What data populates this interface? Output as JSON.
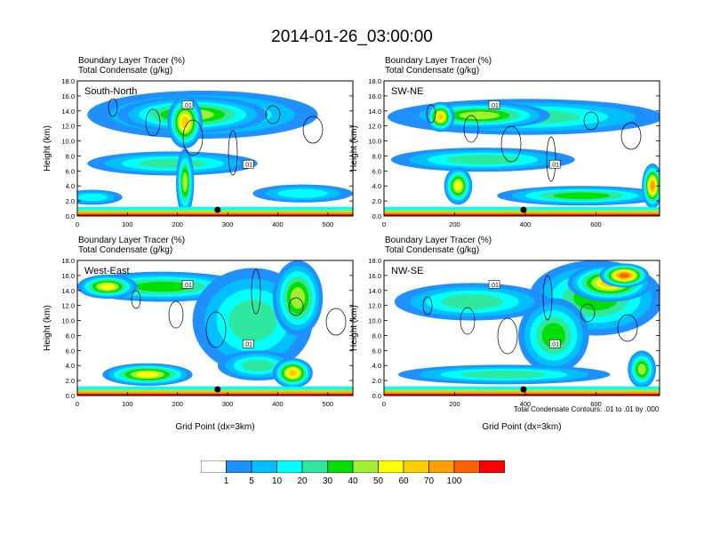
{
  "figure": {
    "title": "2014-01-26_03:00:00",
    "footnote": "Total Condensate Contours: .01 to .01 by .000"
  },
  "chart_data": [
    {
      "type": "heatmap",
      "panel": "South-North",
      "header_line1": "Boundary Layer Tracer    (%)",
      "header_line2": "Total Condensate    (g/kg)",
      "xlabel": "",
      "ylabel": "Height (km)",
      "xlim": [
        0,
        550
      ],
      "ylim": [
        0,
        18
      ],
      "x_ticks": [
        "0",
        "100",
        "200",
        "300",
        "400",
        "500"
      ],
      "y_ticks": [
        "0.0",
        "2.0",
        "4.0",
        "6.0",
        "8.0",
        "10.0",
        "12.0",
        "14.0",
        "16.0",
        "18.0"
      ],
      "contour_labels": [
        ".01"
      ]
    },
    {
      "type": "heatmap",
      "panel": "SW-NE",
      "header_line1": "Boundary Layer Tracer    (%)",
      "header_line2": "Total Condensate    (g/kg)",
      "xlabel": "",
      "ylabel": "Height (km)",
      "xlim": [
        0,
        780
      ],
      "ylim": [
        0,
        18
      ],
      "x_ticks": [
        "0",
        "200",
        "400",
        "600"
      ],
      "y_ticks": [
        "0.0",
        "2.0",
        "4.0",
        "6.0",
        "8.0",
        "10.0",
        "12.0",
        "14.0",
        "16.0",
        "18.0"
      ],
      "contour_labels": [
        ".01"
      ]
    },
    {
      "type": "heatmap",
      "panel": "West-East",
      "header_line1": "Boundary Layer Tracer    (%)",
      "header_line2": "Total Condensate    (g/kg)",
      "xlabel": "Grid Point (dx=3km)",
      "ylabel": "Height (km)",
      "xlim": [
        0,
        550
      ],
      "ylim": [
        0,
        18
      ],
      "x_ticks": [
        "0",
        "100",
        "200",
        "300",
        "400",
        "500"
      ],
      "y_ticks": [
        "0.0",
        "2.0",
        "4.0",
        "6.0",
        "8.0",
        "10.0",
        "12.0",
        "14.0",
        "16.0",
        "18.0"
      ],
      "contour_labels": [
        ".01"
      ]
    },
    {
      "type": "heatmap",
      "panel": "NW-SE",
      "header_line1": "Boundary Layer Tracer    (%)",
      "header_line2": "Total Condensate    (g/kg)",
      "xlabel": "Grid Point (dx=3km)",
      "ylabel": "Height (km)",
      "xlim": [
        0,
        780
      ],
      "ylim": [
        0,
        18
      ],
      "x_ticks": [
        "0",
        "200",
        "400",
        "600"
      ],
      "y_ticks": [
        "0.0",
        "2.0",
        "4.0",
        "6.0",
        "8.0",
        "10.0",
        "12.0",
        "14.0",
        "16.0",
        "18.0"
      ],
      "contour_labels": [
        ".01"
      ]
    }
  ],
  "colorbar": {
    "levels": [
      "1",
      "5",
      "10",
      "20",
      "30",
      "40",
      "50",
      "60",
      "70",
      "100"
    ],
    "colors": [
      "#ffffff",
      "#1e90ff",
      "#00bfff",
      "#00ffff",
      "#2ee8a0",
      "#00e000",
      "#a0f030",
      "#ffff00",
      "#ffd000",
      "#ffa000",
      "#ff6000",
      "#ff0000"
    ]
  }
}
